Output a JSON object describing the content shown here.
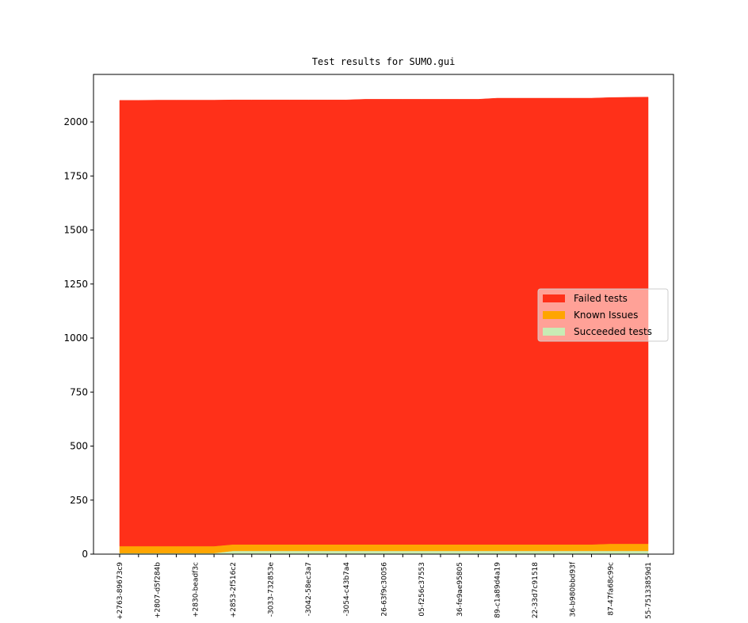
{
  "chart_data": {
    "type": "stacked-area",
    "title": "Test results for SUMO.gui",
    "categories": [
      "+2763-89673c9",
      null,
      "+2807-d5f284b",
      null,
      "+2830-beadf3c",
      null,
      "+2853-2f516c2",
      null,
      "-3033-732853e",
      null,
      "-3042-58ec3a7",
      null,
      "-3054-c43b7a4",
      null,
      "26-63f9c30056",
      null,
      "05-f256c37553",
      null,
      "36-fe9ae95805",
      null,
      "89-c1a89d4a19",
      null,
      "22-33d7c91518",
      null,
      "36-b980bbd93f",
      null,
      "87-47fa68c99c",
      null,
      "55-75133859d1"
    ],
    "series": [
      {
        "name": "Succeeded tests",
        "color": "#c8ecb4",
        "values": [
          5,
          5,
          5,
          5,
          5,
          5,
          15,
          15,
          15,
          15,
          15,
          15,
          15,
          15,
          15,
          15,
          15,
          15,
          15,
          15,
          15,
          15,
          15,
          15,
          15,
          15,
          15,
          15,
          15
        ]
      },
      {
        "name": "Known Issues",
        "color": "#ffa500",
        "values": [
          32,
          32,
          32,
          32,
          32,
          32,
          30,
          30,
          30,
          30,
          30,
          30,
          30,
          30,
          30,
          30,
          30,
          30,
          30,
          30,
          30,
          30,
          30,
          30,
          30,
          30,
          33,
          33,
          33
        ]
      },
      {
        "name": "Failed tests",
        "color": "#ff3019",
        "values": [
          2063,
          2063,
          2064,
          2064,
          2064,
          2064,
          2057,
          2057,
          2057,
          2057,
          2057,
          2057,
          2057,
          2060,
          2060,
          2060,
          2060,
          2060,
          2060,
          2060,
          2065,
          2065,
          2065,
          2065,
          2065,
          2065,
          2065,
          2066,
          2067
        ]
      }
    ],
    "ylim": [
      0,
      2220
    ],
    "yticks": [
      0,
      250,
      500,
      750,
      1000,
      1250,
      1500,
      1750,
      2000
    ],
    "legend": "center right"
  }
}
